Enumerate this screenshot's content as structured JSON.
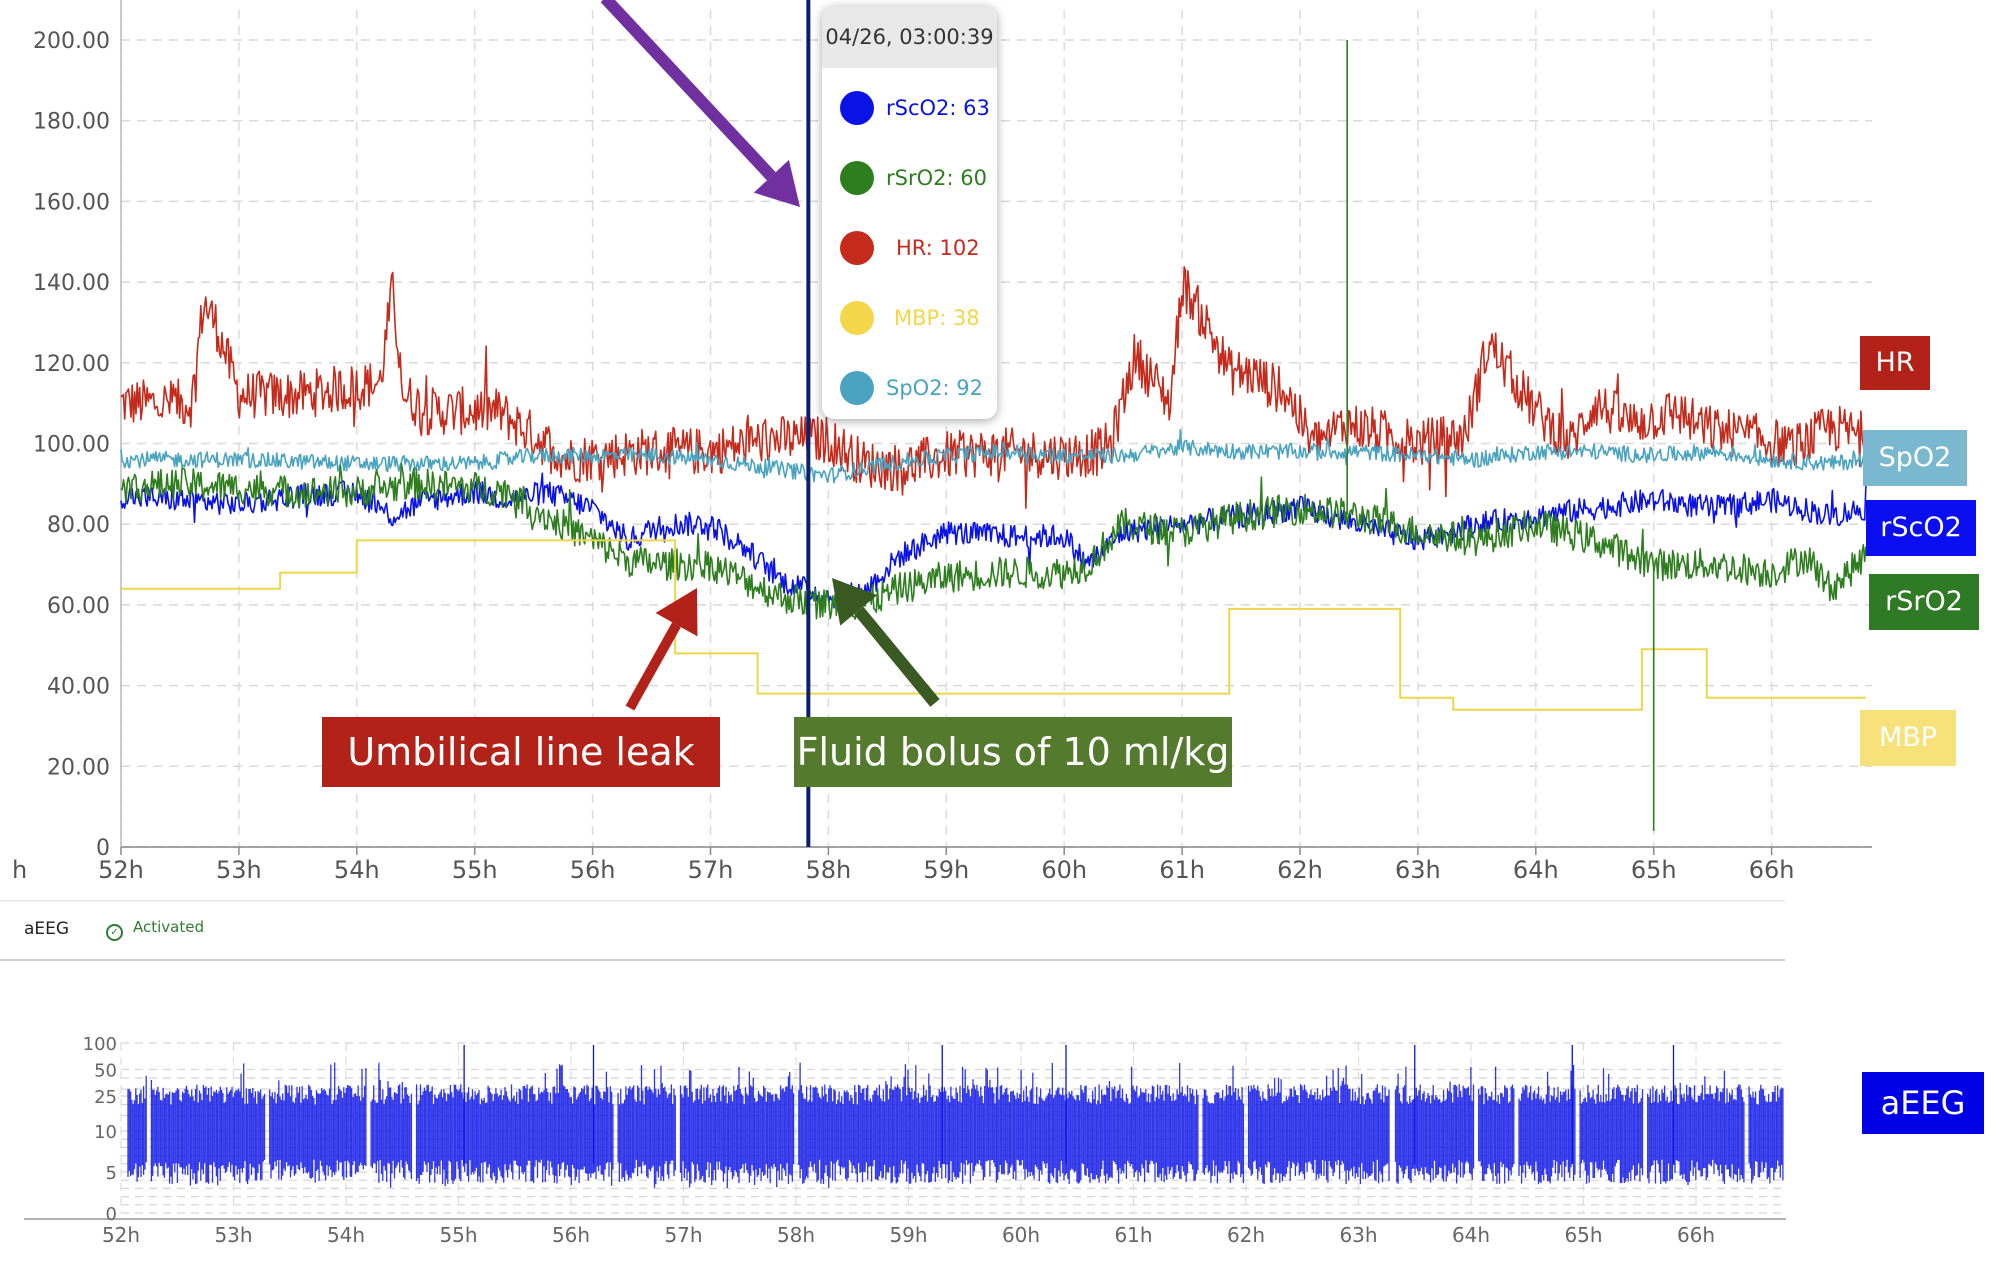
{
  "chart_data": [
    {
      "type": "line",
      "xlabel": "",
      "ylabel": "",
      "ylim": [
        0,
        200
      ],
      "xlim": [
        52,
        66.8
      ],
      "x_unit": "h",
      "yticks": [
        "0",
        "20.00",
        "40.00",
        "60.00",
        "80.00",
        "100.00",
        "120.00",
        "140.00",
        "160.00",
        "180.00",
        "200.00"
      ],
      "xticks": [
        "52h",
        "53h",
        "54h",
        "55h",
        "56h",
        "57h",
        "58h",
        "59h",
        "60h",
        "61h",
        "62h",
        "63h",
        "64h",
        "65h",
        "66h"
      ],
      "x_edge_label": "h",
      "grid": true,
      "series": [
        {
          "name": "HR",
          "color": "#c42b1c",
          "noise": 6,
          "x": [
            52,
            52.6,
            52.7,
            52.8,
            53.0,
            53.5,
            54.2,
            54.3,
            54.4,
            54.6,
            55.2,
            55.4,
            55.8,
            56.4,
            57.0,
            57.5,
            58.0,
            58.3,
            58.6,
            59.0,
            59.5,
            60.0,
            60.3,
            60.4,
            60.6,
            60.9,
            61.0,
            61.2,
            61.4,
            61.6,
            61.9,
            62.1,
            62.4,
            63.0,
            63.4,
            63.6,
            64.0,
            64.3,
            64.5,
            64.8,
            65.2,
            65.4,
            65.8,
            66.2,
            66.5,
            66.8
          ],
          "y": [
            110,
            110,
            135,
            130,
            112,
            112,
            115,
            138,
            112,
            108,
            108,
            104,
            96,
            98,
            98,
            101,
            101,
            95,
            94,
            97,
            98,
            97,
            98,
            100,
            122,
            110,
            140,
            130,
            118,
            117,
            112,
            100,
            105,
            100,
            102,
            125,
            108,
            100,
            110,
            105,
            108,
            104,
            102,
            99,
            104,
            102
          ]
        },
        {
          "name": "SpO2",
          "color": "#4aa3c0",
          "noise": 2,
          "x": [
            52,
            53,
            54,
            55,
            55.5,
            56,
            56.5,
            57,
            57.5,
            58,
            58.5,
            59,
            59.5,
            60,
            60.5,
            61,
            61.5,
            62,
            62.5,
            63,
            63.5,
            64,
            64.5,
            65,
            65.5,
            66,
            66.5,
            66.8
          ],
          "y": [
            96,
            96,
            95,
            95,
            97,
            97,
            97,
            96,
            94,
            92,
            95,
            97,
            98,
            97,
            97,
            99,
            98,
            98,
            98,
            97,
            96,
            98,
            98,
            97,
            98,
            96,
            95,
            96
          ]
        },
        {
          "name": "rScO2",
          "color": "#0a12e6",
          "noise": 3,
          "x": [
            52,
            52.5,
            53,
            53.5,
            54,
            54.3,
            54.6,
            55,
            55.3,
            55.6,
            56,
            56.3,
            56.6,
            57,
            57.3,
            57.6,
            58,
            58.3,
            58.6,
            59,
            59.5,
            60,
            60.2,
            60.5,
            61,
            61.5,
            62,
            62.5,
            63,
            63.5,
            64,
            64.5,
            65,
            65.5,
            66,
            66.5,
            66.8
          ],
          "y": [
            87,
            86,
            85,
            87,
            88,
            82,
            86,
            88,
            86,
            88,
            84,
            76,
            80,
            80,
            74,
            66,
            62,
            63,
            72,
            78,
            77,
            77,
            70,
            78,
            80,
            82,
            84,
            80,
            76,
            80,
            82,
            84,
            86,
            84,
            86,
            82,
            84
          ]
        },
        {
          "name": "rSrO2",
          "color": "#2e7d1e",
          "noise": 4,
          "x": [
            52,
            52.5,
            53,
            53.5,
            54,
            54.5,
            55,
            55.3,
            55.6,
            56,
            56.3,
            56.6,
            57,
            57.3,
            57.6,
            58,
            58.3,
            58.6,
            59,
            59.5,
            60,
            60.2,
            60.5,
            61,
            61.5,
            62,
            62.5,
            63,
            63.5,
            64,
            64.5,
            65,
            65.5,
            66,
            66.3,
            66.5,
            66.8
          ],
          "y": [
            89,
            90,
            89,
            88,
            88,
            90,
            89,
            88,
            82,
            76,
            71,
            70,
            70,
            66,
            62,
            60,
            60,
            64,
            67,
            68,
            68,
            70,
            80,
            78,
            82,
            84,
            82,
            78,
            76,
            80,
            76,
            70,
            70,
            68,
            72,
            64,
            72
          ]
        },
        {
          "name": "MBP",
          "color": "#ecd64a",
          "step": true,
          "x": [
            52,
            53.35,
            54.0,
            56.7,
            57.4,
            61.4,
            62.85,
            63.3,
            64.9,
            65.45,
            66.8
          ],
          "y": [
            64,
            68,
            76,
            48,
            38,
            59,
            37,
            34,
            49,
            37,
            37
          ]
        }
      ],
      "vertical_events": [
        {
          "series": "rSrO2",
          "x": 62.4,
          "y_top": 200
        },
        {
          "series": "rSrO2",
          "x": 65.0,
          "y_bottom": 4
        }
      ],
      "cursor": {
        "x": 57.83,
        "label": "04/26, 03:00:39"
      },
      "tooltip": [
        {
          "name": "rScO2",
          "label": "rScO2: 63",
          "color": "#0a12e6"
        },
        {
          "name": "rSrO2",
          "label": "rSrO2: 60",
          "color": "#2e7d1e"
        },
        {
          "name": "HR",
          "label": "HR: 102",
          "color": "#c42b1c"
        },
        {
          "name": "MBP",
          "label": "MBP: 38",
          "color": "#f3d64a"
        },
        {
          "name": "SpO2",
          "label": "SpO2: 92",
          "color": "#4aa3c0"
        }
      ],
      "series_tags": [
        {
          "label": "HR",
          "color": "#b22218"
        },
        {
          "label": "SpO2",
          "color": "#79b8ce"
        },
        {
          "label": "rScO2",
          "color": "#0a0ef0"
        },
        {
          "label": "rSrO2",
          "color": "#2f7a25"
        },
        {
          "label": "MBP",
          "color": "#f7e27a"
        }
      ],
      "annotations": [
        {
          "label": "Umbilical line leak",
          "color": "#b22218"
        },
        {
          "label": "Fluid bolus of 10 ml/kg",
          "color": "#547a2e"
        }
      ],
      "arrow_colors": {
        "purple": "#7030a0",
        "red": "#b22218",
        "green": "#3a5a24"
      }
    },
    {
      "type": "area",
      "name": "aEEG",
      "color": "#0a12e6",
      "xlim": [
        52,
        66.8
      ],
      "xticks": [
        "52h",
        "53h",
        "54h",
        "55h",
        "56h",
        "57h",
        "58h",
        "59h",
        "60h",
        "61h",
        "62h",
        "63h",
        "64h",
        "65h",
        "66h"
      ],
      "yscale": "log-linear",
      "yticks": [
        "0",
        "5",
        "10",
        "25",
        "50",
        "100"
      ],
      "band_lower": 5,
      "band_upper": 30,
      "gaps": [
        52.25,
        53.3,
        54.2,
        54.6,
        56.4,
        56.95,
        58.0,
        61.6,
        62.0,
        63.3,
        64.05,
        64.4,
        64.95,
        65.55,
        66.45,
        66.8
      ]
    }
  ],
  "aeeg_panel": {
    "title": "aEEG",
    "status": "Activated",
    "tag": {
      "label": "aEEG",
      "color": "#0000e6"
    }
  }
}
